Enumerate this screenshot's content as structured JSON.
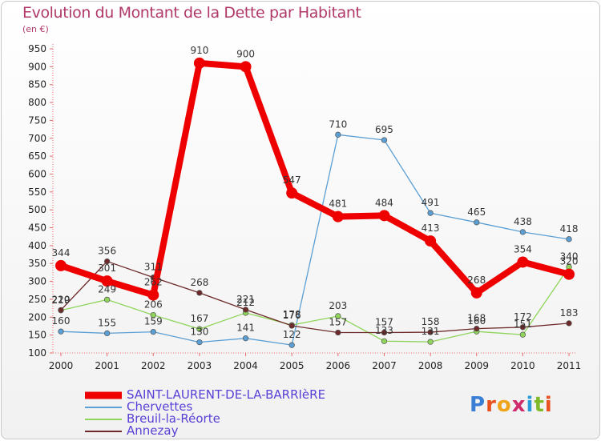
{
  "title": "Evolution du Montant de la Dette par Habitant",
  "unit": "(en €)",
  "logo": {
    "text": "Proxiti",
    "letter_colors": [
      "#3a7fd4",
      "#e8501e",
      "#f0a419",
      "#cf2a6b",
      "#2a9bd8",
      "#7fba2b",
      "#e8501e"
    ]
  },
  "chart_data": {
    "type": "line",
    "x": [
      "2000",
      "2001",
      "2002",
      "2003",
      "2004",
      "2005",
      "2006",
      "2007",
      "2008",
      "2009",
      "2010",
      "2011"
    ],
    "ylim": [
      100,
      950
    ],
    "yticks": [
      100,
      150,
      200,
      250,
      300,
      350,
      400,
      450,
      500,
      550,
      600,
      650,
      700,
      750,
      800,
      850,
      900,
      950
    ],
    "grid": false,
    "legend_position": "bottom-left",
    "series": [
      {
        "name": "Chervettes",
        "color": "#5b9fd4",
        "values": [
          160,
          155,
          159,
          130,
          141,
          122,
          710,
          695,
          491,
          465,
          438,
          418
        ],
        "labels": [
          "160",
          "155",
          "159",
          "130",
          "141",
          "122",
          "710",
          "695",
          "491",
          "465",
          "438",
          "418"
        ]
      },
      {
        "name": "Breuil-la-Réorte",
        "color": "#8fd45b",
        "values": [
          219,
          249,
          206,
          167,
          212,
          178,
          203,
          133,
          131,
          160,
          151,
          340
        ],
        "labels": [
          "219",
          "249",
          "206",
          "167",
          "212",
          "178",
          "203",
          "133",
          "131",
          "160",
          "151",
          "340"
        ]
      },
      {
        "name": "Annezay",
        "color": "#6e2a2a",
        "values": [
          220,
          356,
          311,
          268,
          221,
          176,
          157,
          157,
          158,
          168,
          172,
          183
        ],
        "labels": [
          "220",
          "356",
          "311",
          "268",
          "221",
          "176",
          "157",
          "157",
          "158",
          "168",
          "172",
          "183"
        ]
      },
      {
        "name": "SAINT-LAURENT-DE-LA-BARRIèRE",
        "color": "#ee0000",
        "values": [
          344,
          301,
          262,
          910,
          900,
          547,
          481,
          484,
          413,
          268,
          354,
          320
        ],
        "labels": [
          "344",
          "301",
          "262",
          "910",
          "900",
          "547",
          "481",
          "484",
          "413",
          "268",
          "354",
          "320"
        ]
      }
    ],
    "legend": [
      "SAINT-LAURENT-DE-LA-BARRIèRE",
      "Chervettes",
      "Breuil-la-Réorte",
      "Annezay"
    ]
  }
}
